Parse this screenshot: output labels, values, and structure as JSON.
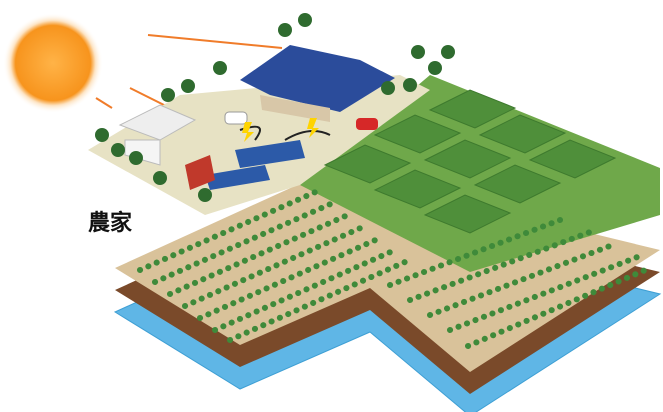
{
  "label": "農家"
}
